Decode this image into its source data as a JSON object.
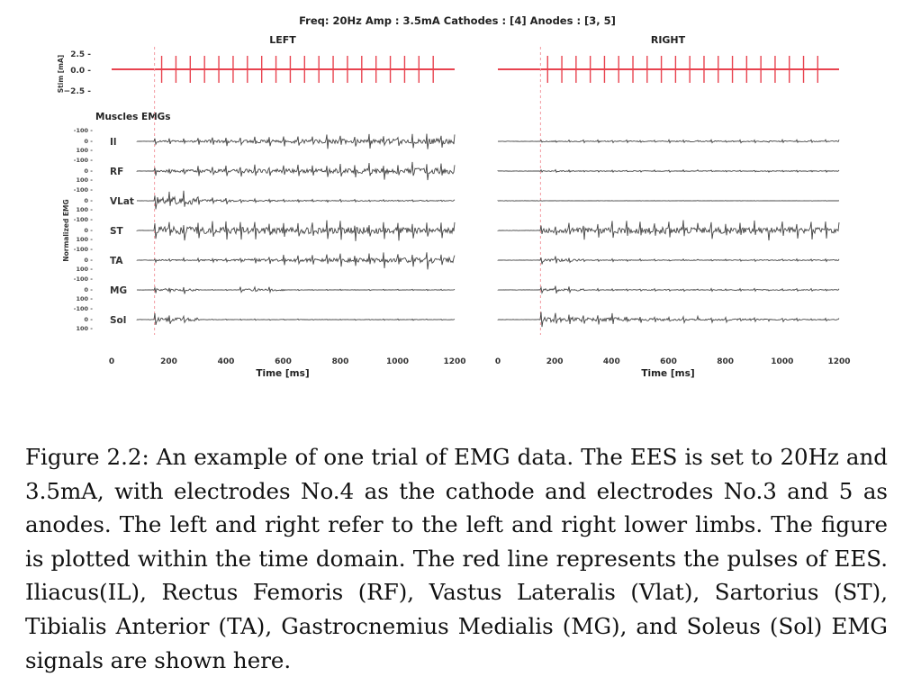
{
  "figure": {
    "suptitle": "Freq: 20Hz  Amp : 3.5mA  Cathodes : [4]  Anodes : [3, 5]",
    "panel_left": "LEFT",
    "panel_right": "RIGHT",
    "stim_ylabel": "Stim [mA]",
    "stim_ticks": [
      "2.5 -",
      "0.0 -",
      "−2.5 -"
    ],
    "emg_title": "Muscles EMGs",
    "emg_ylabel": "Normalized EMG",
    "xlabel": "Time [ms]",
    "x_ticks": [
      "0",
      "200",
      "400",
      "600",
      "800",
      "1000",
      "1200"
    ],
    "muscles": [
      "Il",
      "RF",
      "VLat",
      "ST",
      "TA",
      "MG",
      "Sol"
    ],
    "colors": {
      "stim": "#e8434f",
      "emg": "#444444",
      "marker": "#f29aa0"
    }
  },
  "chart_data": [
    {
      "type": "line",
      "title": "LEFT",
      "ylabel": "Stim [mA]",
      "xlabel": "Time [ms]",
      "xlim": [
        0,
        1200
      ],
      "ylim": [
        -2.5,
        2.5
      ],
      "stim_frequency_hz": 20,
      "stim_amplitude_ma": 3.5,
      "stim_onset_ms": 150,
      "stim_offset_ms": 1150,
      "series": [
        {
          "name": "Il",
          "activity": [
            0.25,
            0.35,
            0.4,
            0.45,
            0.55,
            0.6,
            0.7
          ]
        },
        {
          "name": "RF",
          "activity": [
            0.35,
            0.45,
            0.5,
            0.55,
            0.6,
            0.65,
            0.7
          ]
        },
        {
          "name": "VLat",
          "activity": [
            0.9,
            0.3,
            0.15,
            0.1,
            0.1,
            0.1,
            0.1
          ]
        },
        {
          "name": "ST",
          "activity": [
            0.9,
            0.8,
            0.8,
            0.8,
            0.8,
            0.75,
            0.7
          ]
        },
        {
          "name": "TA",
          "activity": [
            0.15,
            0.2,
            0.3,
            0.4,
            0.5,
            0.6,
            0.7
          ]
        },
        {
          "name": "MG",
          "activity": [
            0.3,
            0.05,
            0.25,
            0.05,
            0.05,
            0.05,
            0.05
          ]
        },
        {
          "name": "Sol",
          "activity": [
            0.5,
            0.05,
            0.05,
            0.05,
            0.05,
            0.05,
            0.05
          ]
        }
      ]
    },
    {
      "type": "line",
      "title": "RIGHT",
      "ylabel": "Stim [mA]",
      "xlabel": "Time [ms]",
      "xlim": [
        0,
        1200
      ],
      "ylim": [
        -2.5,
        2.5
      ],
      "stim_frequency_hz": 20,
      "stim_amplitude_ma": 3.5,
      "stim_onset_ms": 150,
      "stim_offset_ms": 1150,
      "series": [
        {
          "name": "Il",
          "activity": [
            0.1,
            0.12,
            0.12,
            0.12,
            0.12,
            0.12,
            0.12
          ]
        },
        {
          "name": "RF",
          "activity": [
            0.1,
            0.08,
            0.08,
            0.08,
            0.08,
            0.08,
            0.08
          ]
        },
        {
          "name": "VLat",
          "activity": [
            0.02,
            0.02,
            0.02,
            0.02,
            0.02,
            0.02,
            0.02
          ]
        },
        {
          "name": "ST",
          "activity": [
            0.6,
            0.7,
            0.8,
            0.8,
            0.75,
            0.75,
            0.7
          ]
        },
        {
          "name": "TA",
          "activity": [
            0.3,
            0.1,
            0.1,
            0.08,
            0.08,
            0.1,
            0.1
          ]
        },
        {
          "name": "MG",
          "activity": [
            0.3,
            0.1,
            0.1,
            0.1,
            0.1,
            0.1,
            0.1
          ]
        },
        {
          "name": "Sol",
          "activity": [
            0.6,
            0.5,
            0.3,
            0.25,
            0.2,
            0.15,
            0.1
          ]
        }
      ]
    }
  ],
  "caption": {
    "text": "Figure 2.2: An example of one trial of EMG data. The EES is set to 20Hz and 3.5mA, with electrodes No.4 as the cathode and electrodes No.3 and 5 as anodes. The left and right refer to the left and right lower limbs. The figure is plotted within the time domain. The red line represents the pulses of EES. Iliacus(IL), Rectus Femoris (RF), Vastus Lateralis (Vlat), Sartorius (ST), Tibialis Anterior (TA), Gastrocnemius Medialis (MG), and Soleus (Sol) EMG signals are shown here."
  }
}
